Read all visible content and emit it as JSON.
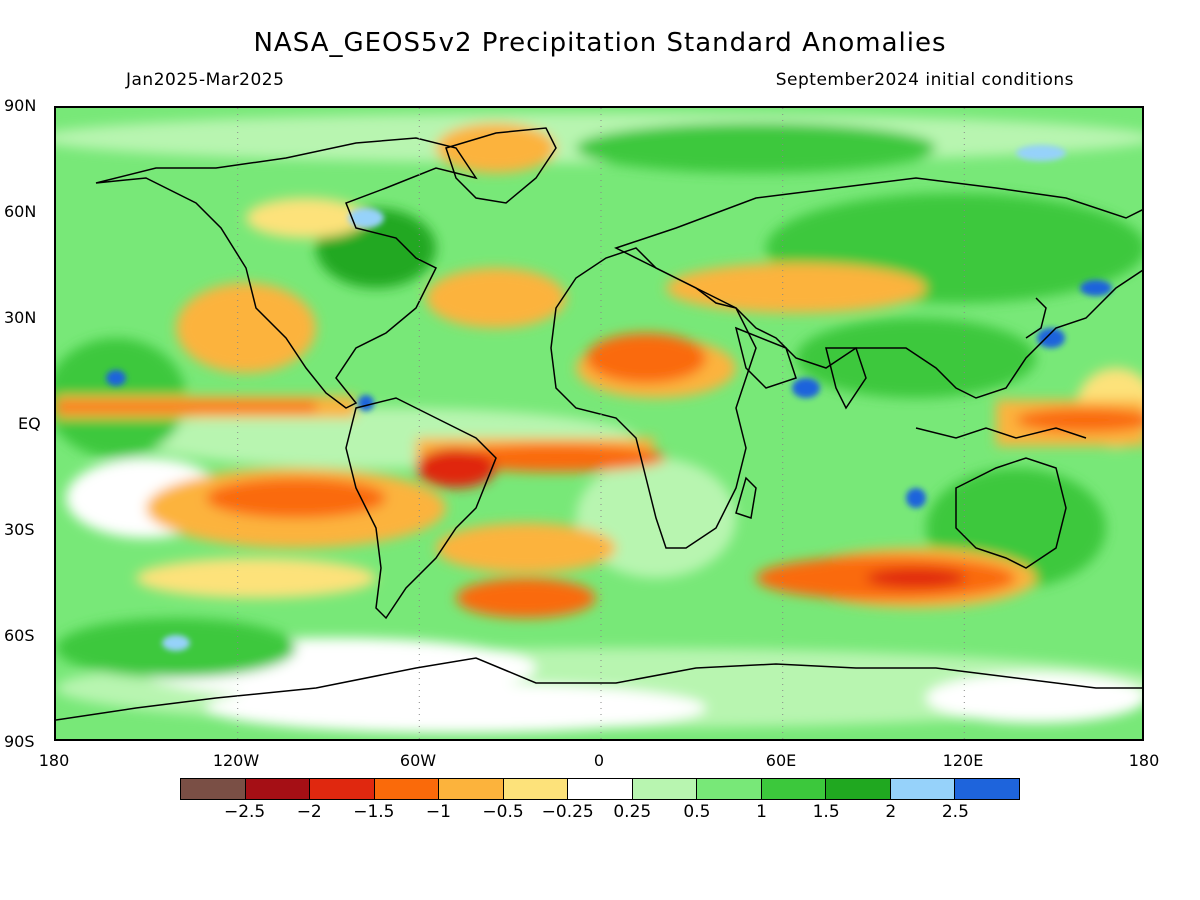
{
  "title": "NASA_GEOS5v2 Precipitation Standard Anomalies",
  "subtitle_left": "Jan2025-Mar2025",
  "subtitle_right": "September2024 initial conditions",
  "lat_labels": [
    "90N",
    "60N",
    "30N",
    "EQ",
    "30S",
    "60S",
    "90S"
  ],
  "lon_labels": [
    "180",
    "120W",
    "60W",
    "0",
    "60E",
    "120E",
    "180"
  ],
  "colorbar": {
    "colors": [
      "#7a4f45",
      "#a50f15",
      "#e0280f",
      "#fa6a0a",
      "#fcb33c",
      "#fde27a",
      "#ffffff",
      "#b8f5b0",
      "#78e878",
      "#3cc83c",
      "#20a820",
      "#96d2fa",
      "#1e64dc"
    ],
    "labels": [
      "-2.5",
      "-2",
      "-1.5",
      "-1",
      "-0.5",
      "-0.25",
      "0.25",
      "0.5",
      "1",
      "1.5",
      "2",
      "2.5"
    ]
  }
}
